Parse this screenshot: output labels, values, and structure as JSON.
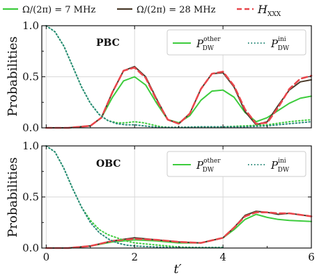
{
  "figure_legend": {
    "items": [
      {
        "label": "Ω/(2π) = 7 MHz",
        "color": "#3dcc3d",
        "style": "solid"
      },
      {
        "label": "Ω/(2π) = 28 MHz",
        "color": "#4a3a2a",
        "style": "solid"
      },
      {
        "label": "H",
        "sub": "XXX",
        "color": "#e8464b",
        "style": "dashed"
      }
    ]
  },
  "colors": {
    "green": "#3dcc3d",
    "brown": "#4a3a2a",
    "red": "#e8464b",
    "teal": "#2a8a7a"
  },
  "chart_data": [
    {
      "type": "line",
      "panel": "top",
      "boundary_condition": "PBC",
      "xlabel": "",
      "ylabel": "Probabilities",
      "xlim": [
        -0.1,
        6
      ],
      "ylim": [
        0,
        1
      ],
      "xticks": [
        0,
        2,
        4,
        6
      ],
      "xtick_labels": [
        "",
        "",
        "",
        ""
      ],
      "yticks": [
        0,
        0.5,
        1
      ],
      "ytick_labels": [
        "0.0",
        "0.5",
        "1.0"
      ],
      "grid": true,
      "legend": {
        "placement": "top-right",
        "entries": [
          {
            "base": "P",
            "sub": "DW",
            "sup": "other",
            "style": "solid",
            "color": "#3dcc3d"
          },
          {
            "base": "P",
            "sub": "DW",
            "sup": "ini",
            "style": "dotted",
            "color": "#2a8a7a"
          }
        ]
      },
      "series": [
        {
          "key": "other_7MHz",
          "style": "solid",
          "color": "#3dcc3d",
          "x": [
            0,
            0.5,
            1.0,
            1.25,
            1.5,
            1.75,
            2.0,
            2.25,
            2.5,
            2.75,
            3.0,
            3.25,
            3.5,
            3.75,
            4.0,
            4.25,
            4.5,
            4.75,
            5.0,
            5.25,
            5.5,
            5.75,
            6.0
          ],
          "y": [
            0,
            0,
            0.02,
            0.1,
            0.3,
            0.46,
            0.5,
            0.42,
            0.24,
            0.08,
            0.05,
            0.12,
            0.27,
            0.36,
            0.37,
            0.3,
            0.15,
            0.06,
            0.1,
            0.17,
            0.24,
            0.29,
            0.31
          ]
        },
        {
          "key": "other_28MHz",
          "style": "solid",
          "color": "#4a3a2a",
          "x": [
            0,
            0.5,
            1.0,
            1.25,
            1.5,
            1.75,
            2.0,
            2.25,
            2.5,
            2.75,
            3.0,
            3.25,
            3.5,
            3.75,
            4.0,
            4.25,
            4.5,
            4.75,
            5.0,
            5.25,
            5.5,
            5.75,
            6.0
          ],
          "y": [
            0,
            0,
            0.02,
            0.1,
            0.35,
            0.56,
            0.6,
            0.5,
            0.28,
            0.08,
            0.04,
            0.14,
            0.38,
            0.53,
            0.54,
            0.4,
            0.16,
            0.03,
            0.06,
            0.22,
            0.37,
            0.45,
            0.47
          ]
        },
        {
          "key": "other_HXXX",
          "style": "dashed",
          "color": "#e8464b",
          "x": [
            0,
            0.5,
            1.0,
            1.25,
            1.5,
            1.75,
            2.0,
            2.25,
            2.5,
            2.75,
            3.0,
            3.25,
            3.5,
            3.75,
            4.0,
            4.25,
            4.5,
            4.75,
            5.0,
            5.25,
            5.5,
            5.75,
            6.0
          ],
          "y": [
            0,
            0,
            0.02,
            0.1,
            0.35,
            0.56,
            0.59,
            0.49,
            0.27,
            0.08,
            0.04,
            0.14,
            0.38,
            0.53,
            0.55,
            0.41,
            0.18,
            0.04,
            0.05,
            0.2,
            0.38,
            0.48,
            0.51
          ]
        },
        {
          "key": "ini_7MHz",
          "style": "dotted",
          "color": "#3dcc3d",
          "x": [
            0,
            0.2,
            0.4,
            0.6,
            0.8,
            1.0,
            1.2,
            1.4,
            1.6,
            1.8,
            2.0,
            2.2,
            2.4,
            2.6,
            2.8,
            3.0,
            3.5,
            4.0,
            4.5,
            5.0,
            5.5,
            6.0
          ],
          "y": [
            1.0,
            0.94,
            0.8,
            0.6,
            0.4,
            0.24,
            0.13,
            0.07,
            0.05,
            0.05,
            0.06,
            0.05,
            0.03,
            0.01,
            0.005,
            0.005,
            0.01,
            0.01,
            0.02,
            0.03,
            0.06,
            0.08
          ]
        },
        {
          "key": "ini_28MHz",
          "style": "dotted",
          "color": "#2a8a7a",
          "x": [
            0,
            0.2,
            0.4,
            0.6,
            0.8,
            1.0,
            1.2,
            1.4,
            1.6,
            1.8,
            2.0,
            2.2,
            2.4,
            2.6,
            2.8,
            3.0,
            3.5,
            4.0,
            4.5,
            5.0,
            5.5,
            6.0
          ],
          "y": [
            1.0,
            0.94,
            0.8,
            0.6,
            0.4,
            0.24,
            0.13,
            0.07,
            0.04,
            0.03,
            0.03,
            0.02,
            0.01,
            0.005,
            0.005,
            0.005,
            0.01,
            0.01,
            0.01,
            0.02,
            0.04,
            0.06
          ]
        }
      ]
    },
    {
      "type": "line",
      "panel": "bottom",
      "boundary_condition": "OBC",
      "xlabel": "t′",
      "ylabel": "Probabilities",
      "xlim": [
        -0.1,
        6
      ],
      "ylim": [
        0,
        1
      ],
      "xticks": [
        0,
        2,
        4,
        6
      ],
      "xtick_labels": [
        "0",
        "2",
        "4",
        "6"
      ],
      "yticks": [
        0,
        0.5,
        1
      ],
      "ytick_labels": [
        "0.0",
        "0.5",
        "1.0"
      ],
      "grid": true,
      "legend": {
        "placement": "top-right",
        "entries": [
          {
            "base": "P",
            "sub": "DW",
            "sup": "other",
            "style": "solid",
            "color": "#3dcc3d"
          },
          {
            "base": "P",
            "sub": "DW",
            "sup": "ini",
            "style": "dotted",
            "color": "#2a8a7a"
          }
        ]
      },
      "series": [
        {
          "key": "other_7MHz",
          "style": "solid",
          "color": "#3dcc3d",
          "x": [
            0,
            0.5,
            1.0,
            1.5,
            2.0,
            2.5,
            3.0,
            3.5,
            4.0,
            4.25,
            4.5,
            4.75,
            5.0,
            5.25,
            5.5,
            6.0
          ],
          "y": [
            0,
            0,
            0.02,
            0.06,
            0.08,
            0.07,
            0.05,
            0.05,
            0.1,
            0.18,
            0.28,
            0.33,
            0.3,
            0.28,
            0.27,
            0.26
          ]
        },
        {
          "key": "other_28MHz",
          "style": "solid",
          "color": "#4a3a2a",
          "x": [
            0,
            0.5,
            1.0,
            1.5,
            2.0,
            2.5,
            3.0,
            3.5,
            4.0,
            4.25,
            4.5,
            4.75,
            5.0,
            5.25,
            5.5,
            6.0
          ],
          "y": [
            0,
            0,
            0.02,
            0.07,
            0.1,
            0.08,
            0.06,
            0.05,
            0.1,
            0.2,
            0.32,
            0.36,
            0.35,
            0.33,
            0.34,
            0.31
          ]
        },
        {
          "key": "other_HXXX",
          "style": "dashed",
          "color": "#e8464b",
          "x": [
            0,
            0.5,
            1.0,
            1.5,
            2.0,
            2.5,
            3.0,
            3.5,
            4.0,
            4.25,
            4.5,
            4.75,
            5.0,
            5.25,
            5.5,
            6.0
          ],
          "y": [
            0,
            0,
            0.02,
            0.07,
            0.09,
            0.08,
            0.06,
            0.05,
            0.1,
            0.2,
            0.31,
            0.35,
            0.35,
            0.34,
            0.34,
            0.31
          ]
        },
        {
          "key": "ini_7MHz",
          "style": "dotted",
          "color": "#3dcc3d",
          "x": [
            0,
            0.2,
            0.4,
            0.6,
            0.8,
            1.0,
            1.2,
            1.4,
            1.6,
            1.8,
            2.0,
            2.5,
            3.0,
            3.5,
            4.0
          ],
          "y": [
            1.0,
            0.94,
            0.78,
            0.58,
            0.4,
            0.27,
            0.18,
            0.13,
            0.1,
            0.07,
            0.05,
            0.03,
            0.01,
            0.005,
            0.005
          ]
        },
        {
          "key": "ini_28MHz",
          "style": "dotted",
          "color": "#2a8a7a",
          "x": [
            0,
            0.2,
            0.4,
            0.6,
            0.8,
            1.0,
            1.2,
            1.4,
            1.6,
            1.8,
            2.0,
            2.5,
            3.0,
            3.5,
            4.0
          ],
          "y": [
            1.0,
            0.94,
            0.78,
            0.58,
            0.4,
            0.25,
            0.15,
            0.09,
            0.05,
            0.03,
            0.02,
            0.01,
            0.005,
            0.005,
            0.005
          ]
        }
      ]
    }
  ]
}
